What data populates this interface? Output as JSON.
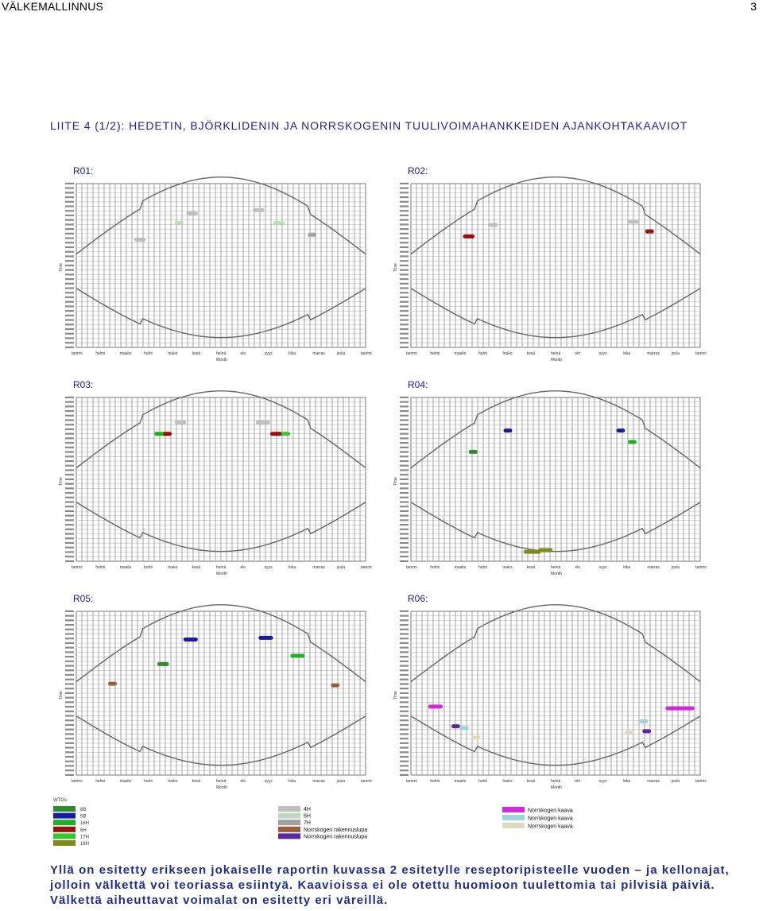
{
  "header": {
    "left": "VÄLKEMALLINNUS",
    "right": "3"
  },
  "title": "LIITE 4 (1/2): HEDETIN, BJÖRKLIDENIN JA NORRSKOGENIN TUULIVOIMAHANKKEIDEN AJANKOHTAKAAVIOT",
  "panels": [
    {
      "id": "R01:"
    },
    {
      "id": "R02:"
    },
    {
      "id": "R03:"
    },
    {
      "id": "R04:"
    },
    {
      "id": "R05:"
    },
    {
      "id": "R06:"
    }
  ],
  "axis": {
    "ylabel": "Time",
    "xlabel": "Month",
    "months": [
      "tammi",
      "helmi",
      "maalis",
      "huhti",
      "touko",
      "kesä",
      "heinä",
      "elo",
      "syys",
      "loka",
      "marras",
      "joulu",
      "tammi"
    ]
  },
  "legend": {
    "title": "WTGs",
    "col1": [
      {
        "label": "8B",
        "color": "#2e8b2e"
      },
      {
        "label": "5B",
        "color": "#1a1aa8"
      },
      {
        "label": "16H",
        "color": "#1fb21f"
      },
      {
        "label": "6H",
        "color": "#9a1010"
      },
      {
        "label": "17H",
        "color": "#32c832"
      },
      {
        "label": "18H",
        "color": "#7f8c1a"
      }
    ],
    "col2": [
      {
        "label": "4H",
        "color": "#bfbfbf"
      },
      {
        "label": "6H",
        "color": "#bdd8bd"
      },
      {
        "label": "7H",
        "color": "#a0a0a0"
      },
      {
        "label": "Norrskogen rakennuslupa",
        "color": "#a05a3c"
      },
      {
        "label": "Norrskogen rakennuslupa",
        "color": "#5a2a9a"
      }
    ],
    "col3": [
      {
        "label": "Norrskogen kaava",
        "color": "#d02bd6"
      },
      {
        "label": "Norrskogen kaava",
        "color": "#9fd4d8"
      },
      {
        "label": "Norrskogen kaava",
        "color": "#e0d9c2"
      }
    ]
  },
  "caption": "Yllä on esitetty erikseen jokaiselle raportin kuvassa 2 esitetylle reseptoripisteelle vuoden – ja kellonajat, jolloin välkettä voi teoriassa esiintyä. Kaavioissa ei ole otettu huomioon tuulettomia tai pilvisiä päiviä. Välkettä aiheuttavat voimalat on esitetty eri väreillä."
}
